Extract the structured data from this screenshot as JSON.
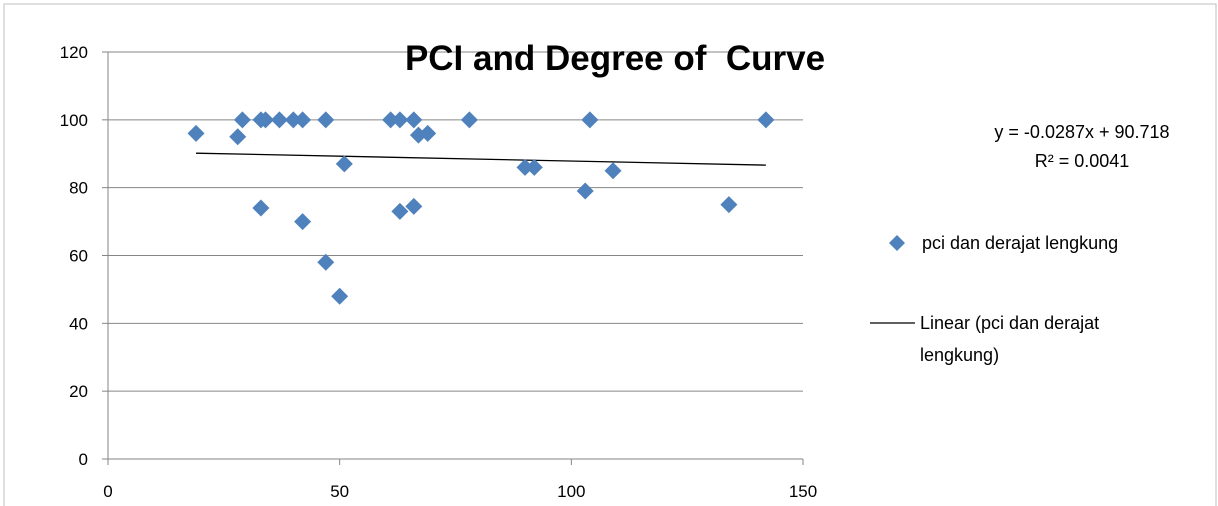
{
  "chart_data": {
    "type": "scatter",
    "title": "PCI and Degree of  Curve",
    "xlabel": "",
    "ylabel": "",
    "xlim": [
      0,
      150
    ],
    "ylim": [
      0,
      120
    ],
    "x_ticks": [
      "0",
      "50",
      "100",
      "150"
    ],
    "y_ticks": [
      "0",
      "20",
      "40",
      "60",
      "80",
      "100",
      "120"
    ],
    "grid": "horizontal",
    "legend_position": "right",
    "series": [
      {
        "name": "pci dan derajat lengkung",
        "color": "#4F81BD",
        "marker": "diamond",
        "points": [
          [
            19,
            96
          ],
          [
            28,
            95
          ],
          [
            29,
            100
          ],
          [
            33,
            74
          ],
          [
            33,
            100
          ],
          [
            34,
            100
          ],
          [
            37,
            100
          ],
          [
            40,
            100
          ],
          [
            42,
            70
          ],
          [
            42,
            100
          ],
          [
            47,
            58
          ],
          [
            47,
            100
          ],
          [
            50,
            48
          ],
          [
            51,
            87
          ],
          [
            61,
            100
          ],
          [
            63,
            73
          ],
          [
            63,
            100
          ],
          [
            66,
            74.5
          ],
          [
            66,
            100
          ],
          [
            67,
            95.5
          ],
          [
            69,
            96
          ],
          [
            78,
            100
          ],
          [
            90,
            86
          ],
          [
            92,
            86
          ],
          [
            103,
            79
          ],
          [
            104,
            100
          ],
          [
            109,
            85
          ],
          [
            134,
            75
          ],
          [
            142,
            100
          ]
        ]
      }
    ],
    "trendline": {
      "name": "Linear (pci dan derajat lengkung)",
      "name_lines": [
        "Linear (pci dan derajat",
        "lengkung)"
      ],
      "color": "#000000",
      "slope": -0.0287,
      "intercept": 90.718,
      "x_range": [
        19,
        142
      ],
      "equation": "y = -0.0287x + 90.718",
      "r_squared": "R² = 0.0041"
    }
  }
}
